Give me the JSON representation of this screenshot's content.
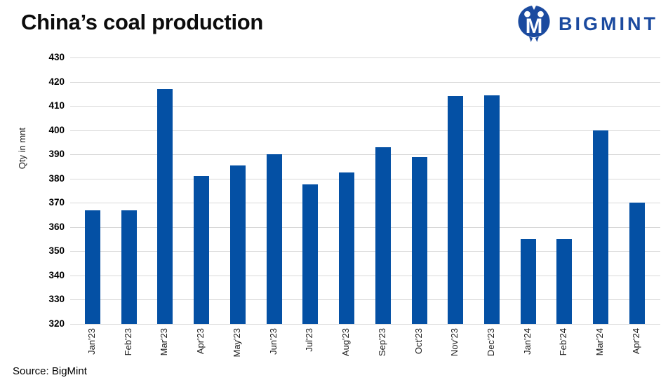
{
  "header": {
    "title": "China’s coal production",
    "logo_text": "BIGMINT"
  },
  "footer": {
    "source": "Source: BigMint"
  },
  "colors": {
    "bar": "#0450a4",
    "brand": "#1b4a9f",
    "grid": "#d8d8d8"
  },
  "chart_data": {
    "type": "bar",
    "title": "China’s coal production",
    "xlabel": "",
    "ylabel": "Qty in mnt",
    "ylim": [
      320,
      430
    ],
    "ytick_step": 10,
    "grid": "horizontal-only",
    "legend": "none",
    "bar_color": "#0450a4",
    "categories": [
      "Jan'23",
      "Feb'23",
      "Mar'23",
      "Apr'23",
      "May'23",
      "Jun'23",
      "Jul'23",
      "Aug'23",
      "Sep'23",
      "Oct'23",
      "Nov'23",
      "Dec'23",
      "Jan'24",
      "Feb'24",
      "Mar'24",
      "Apr'24"
    ],
    "values": [
      367,
      367,
      417,
      381,
      385.5,
      390,
      377.5,
      382.5,
      393,
      389,
      414,
      414.3,
      355,
      355,
      400,
      370
    ]
  }
}
